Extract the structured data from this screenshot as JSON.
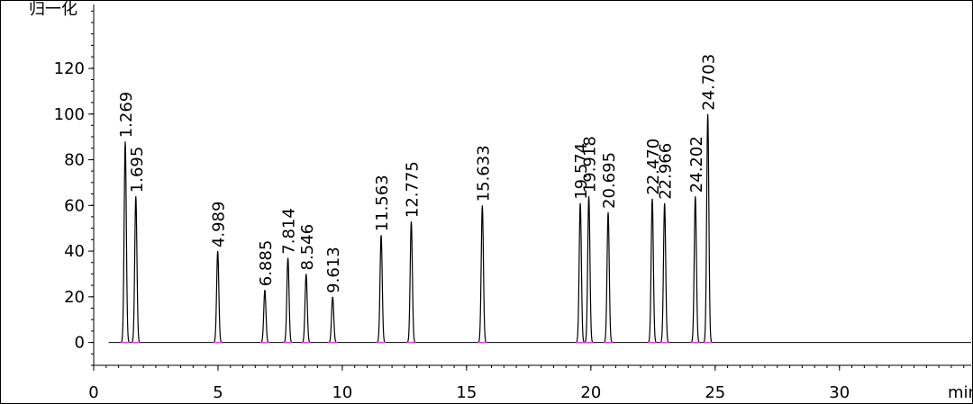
{
  "chart_data": {
    "type": "chromatogram",
    "y_label": "归一化",
    "x_label": "min",
    "xlim": [
      0,
      35.3
    ],
    "xticks": [
      0,
      5,
      10,
      15,
      20,
      25,
      30
    ],
    "ylim": [
      -10,
      148
    ],
    "yticks": [
      0,
      20,
      40,
      60,
      80,
      100,
      120
    ],
    "color": "#000000",
    "x": [
      1.269,
      1.695,
      4.989,
      6.885,
      7.814,
      8.546,
      9.613,
      11.563,
      12.775,
      15.633,
      19.574,
      19.918,
      20.695,
      22.47,
      22.966,
      24.202,
      24.703
    ],
    "x_labels": [
      "1.269",
      "1.695",
      "4.989",
      "6.885",
      "7.814",
      "8.546",
      "9.613",
      "11.563",
      "12.775",
      "15.633",
      "19.574",
      "19.918",
      "20.695",
      "22.470",
      "22.966",
      "24.202",
      "24.703"
    ],
    "values": [
      88,
      64,
      40,
      23,
      37,
      30,
      20,
      47,
      53,
      60,
      61,
      64,
      57,
      63,
      61,
      64,
      100
    ]
  }
}
